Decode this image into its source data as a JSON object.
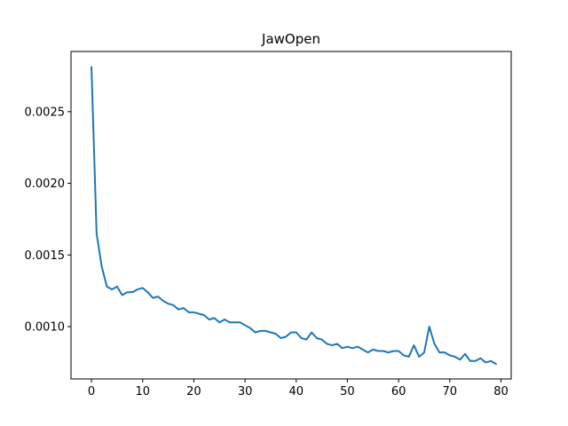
{
  "chart_data": {
    "type": "line",
    "title": "JawOpen",
    "xlabel": "",
    "ylabel": "",
    "xlim": [
      -4,
      82
    ],
    "ylim": [
      0.000635,
      0.00292
    ],
    "grid": false,
    "x_ticks": [
      0,
      10,
      20,
      30,
      40,
      50,
      60,
      70,
      80
    ],
    "x_tick_labels": [
      "0",
      "10",
      "20",
      "30",
      "40",
      "50",
      "60",
      "70",
      "80"
    ],
    "y_ticks": [
      0.001,
      0.0015,
      0.002,
      0.0025
    ],
    "y_tick_labels": [
      "0.0010",
      "0.0015",
      "0.0020",
      "0.0025"
    ],
    "series": [
      {
        "color": "#1f77b4",
        "x": [
          0,
          1,
          2,
          3,
          4,
          5,
          6,
          7,
          8,
          9,
          10,
          11,
          12,
          13,
          14,
          15,
          16,
          17,
          18,
          19,
          20,
          21,
          22,
          23,
          24,
          25,
          26,
          27,
          28,
          29,
          30,
          31,
          32,
          33,
          34,
          35,
          36,
          37,
          38,
          39,
          40,
          41,
          42,
          43,
          44,
          45,
          46,
          47,
          48,
          49,
          50,
          51,
          52,
          53,
          54,
          55,
          56,
          57,
          58,
          59,
          60,
          61,
          62,
          63,
          64,
          65,
          66,
          67,
          68,
          69,
          70,
          71,
          72,
          73,
          74,
          75,
          76,
          77,
          78,
          79
        ],
        "y": [
          0.00281,
          0.00165,
          0.00142,
          0.00128,
          0.00126,
          0.00128,
          0.00122,
          0.00124,
          0.00124,
          0.00126,
          0.00127,
          0.00124,
          0.0012,
          0.00121,
          0.00118,
          0.00116,
          0.00115,
          0.00112,
          0.00113,
          0.0011,
          0.0011,
          0.00109,
          0.00108,
          0.00105,
          0.00106,
          0.00103,
          0.00105,
          0.00103,
          0.00103,
          0.00103,
          0.00101,
          0.00099,
          0.00096,
          0.00097,
          0.00097,
          0.00096,
          0.00095,
          0.00092,
          0.00093,
          0.00096,
          0.00096,
          0.00092,
          0.00091,
          0.00096,
          0.00092,
          0.00091,
          0.00088,
          0.00087,
          0.00088,
          0.00085,
          0.00086,
          0.00085,
          0.00086,
          0.00084,
          0.00082,
          0.00084,
          0.00083,
          0.00083,
          0.00082,
          0.00083,
          0.00083,
          0.0008,
          0.00079,
          0.00087,
          0.00079,
          0.00082,
          0.001,
          0.00088,
          0.00082,
          0.00082,
          0.0008,
          0.00079,
          0.00077,
          0.00081,
          0.00076,
          0.00076,
          0.00078,
          0.00075,
          0.00076,
          0.00074
        ]
      }
    ]
  }
}
